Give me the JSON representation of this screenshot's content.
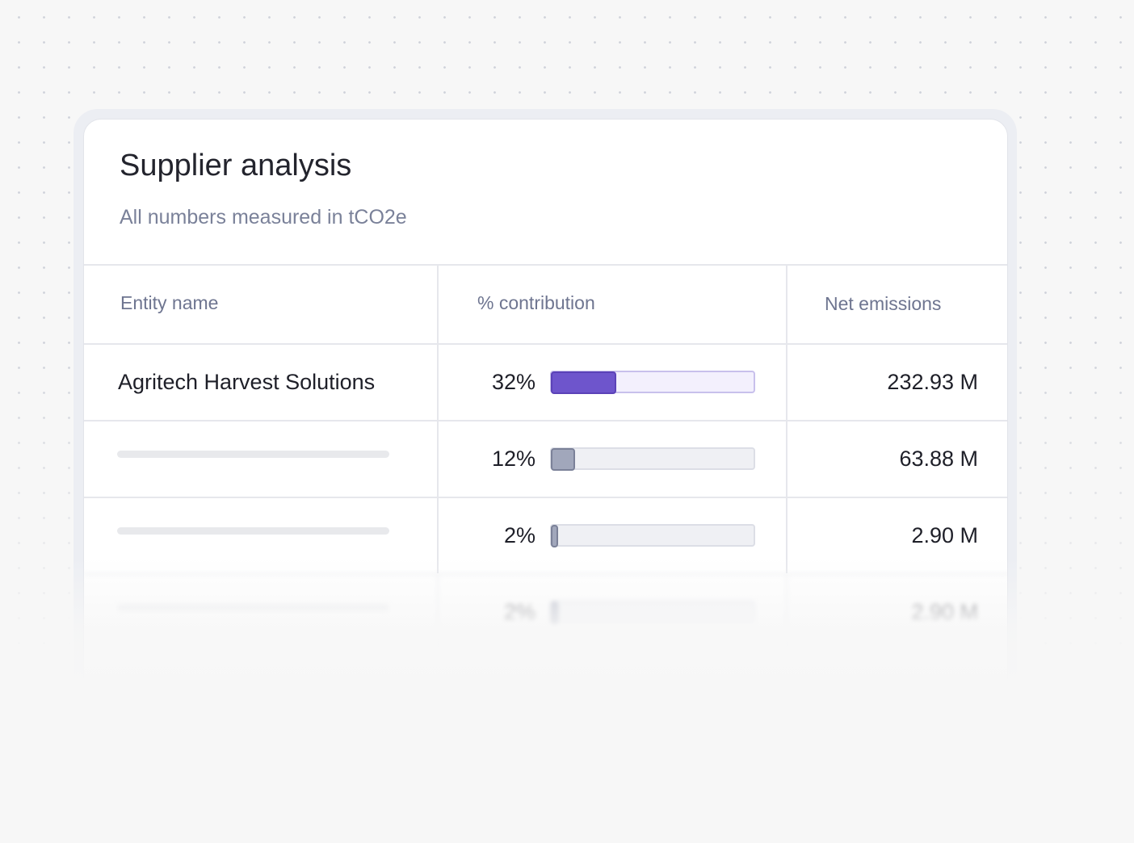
{
  "header": {
    "title": "Supplier analysis",
    "subtitle": "All numbers measured in tCO2e"
  },
  "table": {
    "columns": [
      "Entity name",
      "% contribution",
      "Net emissions"
    ],
    "rows": [
      {
        "name": "Agritech Harvest Solutions",
        "contribution": 32,
        "contribution_label": "32%",
        "net_emissions": "232.93 M"
      },
      {
        "contribution": 12,
        "contribution_label": "12%",
        "net_emissions": "63.88 M"
      },
      {
        "contribution": 2,
        "contribution_label": "2%",
        "net_emissions": "2.90 M"
      },
      {
        "contribution": 2,
        "contribution_label": "2%",
        "net_emissions": "2.90 M"
      }
    ]
  }
}
